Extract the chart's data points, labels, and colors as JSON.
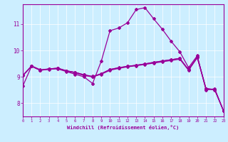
{
  "bg_color": "#cceeff",
  "line_color": "#990099",
  "xmin": 0,
  "xmax": 23,
  "ymin": 7.5,
  "ymax": 11.75,
  "yticks": [
    8,
    9,
    10,
    11
  ],
  "xticks": [
    0,
    1,
    2,
    3,
    4,
    5,
    6,
    7,
    8,
    9,
    10,
    11,
    12,
    13,
    14,
    15,
    16,
    17,
    18,
    19,
    20,
    21,
    22,
    23
  ],
  "xlabel": "Windchill (Refroidissement éolien,°C)",
  "line1_x": [
    0,
    1,
    2,
    3,
    4,
    5,
    6,
    7,
    8,
    9,
    10,
    11,
    12,
    13,
    14,
    15,
    16,
    17,
    18,
    19,
    20,
    21,
    22,
    23
  ],
  "line1_y": [
    8.65,
    9.4,
    9.25,
    9.3,
    9.3,
    9.2,
    9.1,
    9.0,
    8.75,
    9.6,
    10.75,
    10.85,
    11.05,
    11.55,
    11.62,
    11.2,
    10.8,
    10.35,
    9.95,
    9.35,
    9.8,
    8.5,
    8.55,
    7.72
  ],
  "line2_x": [
    0,
    1,
    2,
    3,
    4,
    5,
    6,
    7,
    8,
    9,
    10,
    11,
    12,
    13,
    14,
    15,
    16,
    17,
    18,
    19,
    20,
    21,
    22,
    23
  ],
  "line2_y": [
    9.05,
    9.4,
    9.25,
    9.28,
    9.32,
    9.22,
    9.15,
    9.05,
    9.0,
    9.1,
    9.25,
    9.32,
    9.38,
    9.42,
    9.47,
    9.52,
    9.57,
    9.62,
    9.67,
    9.25,
    9.72,
    8.55,
    8.5,
    7.72
  ],
  "line3_x": [
    0,
    1,
    2,
    3,
    4,
    5,
    6,
    7,
    8,
    9,
    10,
    11,
    12,
    13,
    14,
    15,
    16,
    17,
    18,
    19,
    20,
    21,
    22,
    23
  ],
  "line3_y": [
    9.05,
    9.4,
    9.25,
    9.3,
    9.33,
    9.23,
    9.17,
    9.08,
    9.0,
    9.12,
    9.28,
    9.34,
    9.4,
    9.44,
    9.49,
    9.55,
    9.6,
    9.65,
    9.7,
    9.27,
    9.75,
    8.55,
    8.52,
    7.72
  ],
  "line4_x": [
    0,
    1,
    2,
    3,
    4,
    5,
    6,
    7,
    8,
    9,
    10,
    11,
    12,
    13,
    14,
    15,
    16,
    17,
    18,
    19,
    20,
    21,
    22,
    23
  ],
  "line4_y": [
    9.05,
    9.42,
    9.27,
    9.3,
    9.33,
    9.23,
    9.17,
    9.08,
    9.02,
    9.12,
    9.28,
    9.35,
    9.4,
    9.44,
    9.49,
    9.55,
    9.6,
    9.65,
    9.7,
    9.27,
    9.76,
    8.56,
    8.52,
    7.72
  ]
}
